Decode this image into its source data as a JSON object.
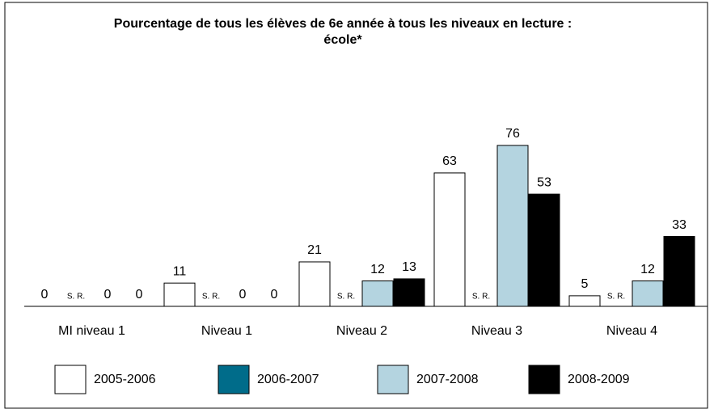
{
  "chart_data": {
    "type": "bar",
    "title": [
      "Pourcentage de tous les élèves de 6e année à tous les niveaux en lecture :",
      "école*"
    ],
    "categories": [
      "MI niveau 1",
      "Niveau 1",
      "Niveau 2",
      "Niveau 3",
      "Niveau 4"
    ],
    "series": [
      {
        "name": "2005-2006",
        "color": "#ffffff",
        "values": [
          0,
          11,
          21,
          63,
          5
        ]
      },
      {
        "name": "2006-2007",
        "color": "#006c8a",
        "values": [
          null,
          null,
          null,
          null,
          null
        ],
        "value_labels": [
          "S. R.",
          "S. R.",
          "S. R.",
          "S. R.",
          "S. R."
        ]
      },
      {
        "name": "2007-2008",
        "color": "#b4d4e0",
        "values": [
          0,
          0,
          12,
          76,
          12
        ]
      },
      {
        "name": "2008-2009",
        "color": "#000000",
        "values": [
          0,
          0,
          13,
          53,
          33
        ]
      }
    ]
  }
}
